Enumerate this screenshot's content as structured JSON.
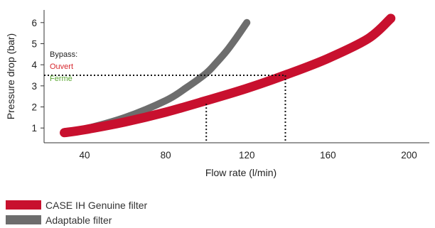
{
  "chart_data": {
    "type": "line",
    "title": "",
    "xlabel": "Flow rate (l/min)",
    "ylabel": "Pressure drop (bar)",
    "xlim": [
      20,
      210
    ],
    "ylim": [
      0.3,
      6.6
    ],
    "xticks": [
      40,
      80,
      120,
      160,
      200
    ],
    "yticks": [
      1,
      2,
      3,
      4,
      5,
      6
    ],
    "grid": false,
    "legend_position": "bottom-left",
    "series": [
      {
        "name": "CASE IH Genuine filter",
        "color": "#c8102e",
        "x": [
          30,
          40,
          60,
          80,
          100,
          120,
          140,
          160,
          180,
          191
        ],
        "y": [
          0.78,
          0.92,
          1.29,
          1.75,
          2.3,
          2.88,
          3.55,
          4.3,
          5.25,
          6.2
        ]
      },
      {
        "name": "Adaptable filter",
        "color": "#6d6d6d",
        "x": [
          30,
          40,
          60,
          80,
          90,
          100,
          105,
          110,
          115,
          120
        ],
        "y": [
          0.78,
          0.95,
          1.5,
          2.3,
          2.9,
          3.6,
          4.1,
          4.65,
          5.3,
          6.0
        ]
      }
    ],
    "reference_lines": [
      {
        "y": 3.5,
        "x_end": 139
      },
      {
        "x": 100,
        "y_end": 2.15
      },
      {
        "x": 139,
        "y_end": 3.5
      }
    ],
    "annotations": [
      {
        "text": "Bypass:",
        "color": "#222222"
      },
      {
        "text": "Ouvert",
        "color": "#d7282f"
      },
      {
        "text": "Fermé",
        "color": "#5aa832"
      }
    ]
  }
}
